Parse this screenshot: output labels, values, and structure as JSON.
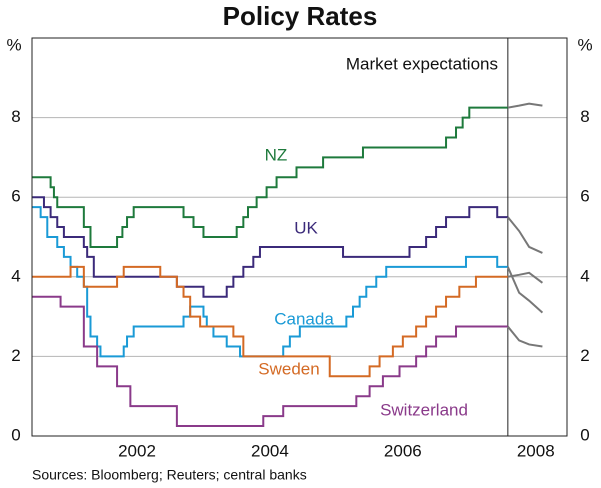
{
  "chart_data": {
    "type": "step-line",
    "title": "Policy Rates",
    "y_unit": "%",
    "annotation": "Market expectations",
    "source": "Sources: Bloomberg; Reuters; central banks",
    "forecast_start": 2008.08,
    "forecast_color": "#777777",
    "xlim": [
      2000.92,
      2008.97
    ],
    "xticks": [
      {
        "value": 2002.5,
        "label": "2002"
      },
      {
        "value": 2004.5,
        "label": "2004"
      },
      {
        "value": 2006.5,
        "label": "2006"
      },
      {
        "value": 2008.5,
        "label": "2008"
      }
    ],
    "ylim": [
      0,
      10
    ],
    "yticks": [
      0,
      2,
      4,
      6,
      8
    ],
    "grid": true,
    "series": [
      {
        "name": "NZ",
        "color": "#1e7a3c",
        "x": [
          2000.92,
          2001.2,
          2001.25,
          2001.3,
          2001.7,
          2001.8,
          2002.2,
          2002.28,
          2002.35,
          2002.45,
          2003.2,
          2003.35,
          2003.5,
          2004.0,
          2004.1,
          2004.17,
          2004.3,
          2004.45,
          2004.6,
          2004.9,
          2005.3,
          2005.9,
          2007.15,
          2007.3,
          2007.4,
          2007.5,
          2008.08
        ],
        "values": [
          6.5,
          6.25,
          6.0,
          5.75,
          5.25,
          4.75,
          5.0,
          5.25,
          5.5,
          5.75,
          5.5,
          5.25,
          5.0,
          5.25,
          5.5,
          5.75,
          6.0,
          6.25,
          6.5,
          6.75,
          7.0,
          7.25,
          7.5,
          7.75,
          8.0,
          8.25,
          8.25
        ],
        "forecast": {
          "x": [
            2008.08,
            2008.25,
            2008.4,
            2008.6
          ],
          "values": [
            8.25,
            8.3,
            8.35,
            8.3
          ]
        }
      },
      {
        "name": "UK",
        "color": "#3b2a7a",
        "x": [
          2000.92,
          2001.1,
          2001.2,
          2001.3,
          2001.4,
          2001.7,
          2001.75,
          2001.85,
          2003.1,
          2003.5,
          2003.85,
          2003.95,
          2004.1,
          2004.25,
          2004.35,
          2004.45,
          2005.6,
          2006.6,
          2006.85,
          2007.0,
          2007.15,
          2007.5,
          2007.92,
          2008.08
        ],
        "values": [
          6.0,
          5.75,
          5.5,
          5.25,
          5.0,
          4.75,
          4.5,
          4.0,
          3.75,
          3.5,
          3.75,
          4.0,
          4.25,
          4.5,
          4.75,
          4.75,
          4.5,
          4.75,
          5.0,
          5.25,
          5.5,
          5.75,
          5.5,
          5.5
        ],
        "forecast": {
          "x": [
            2008.08,
            2008.25,
            2008.4,
            2008.6
          ],
          "values": [
            5.5,
            5.15,
            4.75,
            4.6
          ]
        }
      },
      {
        "name": "Canada",
        "color": "#1a9ad6",
        "x": [
          2000.92,
          2001.05,
          2001.15,
          2001.3,
          2001.4,
          2001.5,
          2001.6,
          2001.7,
          2001.75,
          2001.8,
          2001.9,
          2001.95,
          2002.3,
          2002.35,
          2002.45,
          2002.55,
          2003.2,
          2003.3,
          2003.5,
          2003.55,
          2003.65,
          2003.85,
          2004.05,
          2004.7,
          2004.8,
          2004.95,
          2005.65,
          2005.75,
          2005.85,
          2005.95,
          2006.1,
          2006.25,
          2006.35,
          2007.45,
          2007.92,
          2008.08
        ],
        "values": [
          5.75,
          5.5,
          5.0,
          4.75,
          4.5,
          4.25,
          4.0,
          3.75,
          3.0,
          2.5,
          2.25,
          2.0,
          2.25,
          2.5,
          2.75,
          2.75,
          3.0,
          3.25,
          3.0,
          2.75,
          2.5,
          2.25,
          2.0,
          2.25,
          2.5,
          2.75,
          3.0,
          3.25,
          3.5,
          3.75,
          4.0,
          4.25,
          4.25,
          4.5,
          4.25,
          4.25
        ],
        "forecast": {
          "x": [
            2008.08,
            2008.25,
            2008.4,
            2008.6
          ],
          "values": [
            4.25,
            3.6,
            3.4,
            3.1
          ]
        }
      },
      {
        "name": "Sweden",
        "color": "#d46a24",
        "x": [
          2000.92,
          2001.5,
          2001.7,
          2002.2,
          2002.3,
          2002.85,
          2003.1,
          2003.2,
          2003.3,
          2003.45,
          2003.95,
          2004.1,
          2005.4,
          2006.0,
          2006.15,
          2006.35,
          2006.5,
          2006.7,
          2006.85,
          2007.0,
          2007.15,
          2007.35,
          2007.6,
          2008.08
        ],
        "values": [
          4.0,
          4.25,
          3.75,
          4.0,
          4.25,
          4.0,
          3.75,
          3.5,
          3.0,
          2.75,
          2.5,
          2.0,
          1.5,
          1.75,
          2.0,
          2.25,
          2.5,
          2.75,
          3.0,
          3.25,
          3.5,
          3.75,
          4.0,
          4.0
        ],
        "forecast": {
          "x": [
            2008.08,
            2008.25,
            2008.4,
            2008.6
          ],
          "values": [
            4.0,
            4.05,
            4.1,
            3.85
          ]
        }
      },
      {
        "name": "Switzerland",
        "color": "#8a3a8a",
        "x": [
          2000.92,
          2001.35,
          2001.7,
          2001.9,
          2002.2,
          2002.4,
          2003.1,
          2004.4,
          2004.7,
          2005.8,
          2006.0,
          2006.2,
          2006.45,
          2006.7,
          2006.85,
          2007.0,
          2007.3,
          2008.08
        ],
        "values": [
          3.5,
          3.25,
          2.25,
          1.75,
          1.25,
          0.75,
          0.25,
          0.5,
          0.75,
          1.0,
          1.25,
          1.5,
          1.75,
          2.0,
          2.25,
          2.5,
          2.75,
          2.75
        ],
        "forecast": {
          "x": [
            2008.08,
            2008.25,
            2008.4,
            2008.6
          ],
          "values": [
            2.75,
            2.4,
            2.3,
            2.25
          ]
        }
      }
    ]
  }
}
